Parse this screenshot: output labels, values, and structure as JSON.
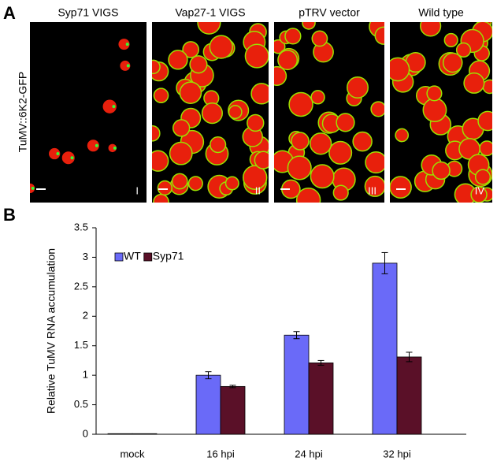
{
  "panel_a": {
    "label": "A",
    "y_label": "TuMV::6K2-GFP",
    "images": [
      {
        "title": "Syp71 VIGS",
        "numeral": "I"
      },
      {
        "title": "Vap27-1 VIGS",
        "numeral": "II"
      },
      {
        "title": "pTRV vector",
        "numeral": "III"
      },
      {
        "title": "Wild type",
        "numeral": "IV"
      }
    ]
  },
  "chart_data": {
    "label": "B",
    "type": "bar",
    "ylabel": "Relative TuMV RNA accumulation",
    "categories": [
      "mock",
      "16 hpi",
      "24 hpi",
      "32 hpi"
    ],
    "series": [
      {
        "name": "WT",
        "color": "#6a6af8",
        "values": [
          0.01,
          1.0,
          1.68,
          2.9
        ],
        "errors": [
          0,
          0.06,
          0.06,
          0.18
        ]
      },
      {
        "name": "Syp71",
        "color": "#5a1028",
        "values": [
          0.01,
          0.81,
          1.21,
          1.31
        ],
        "errors": [
          0,
          0.02,
          0.04,
          0.08
        ]
      }
    ],
    "ylim": [
      0,
      3.5
    ],
    "yticks": [
      0,
      0.5,
      1,
      1.5,
      2,
      2.5,
      3,
      3.5
    ],
    "legend": "upper left"
  }
}
